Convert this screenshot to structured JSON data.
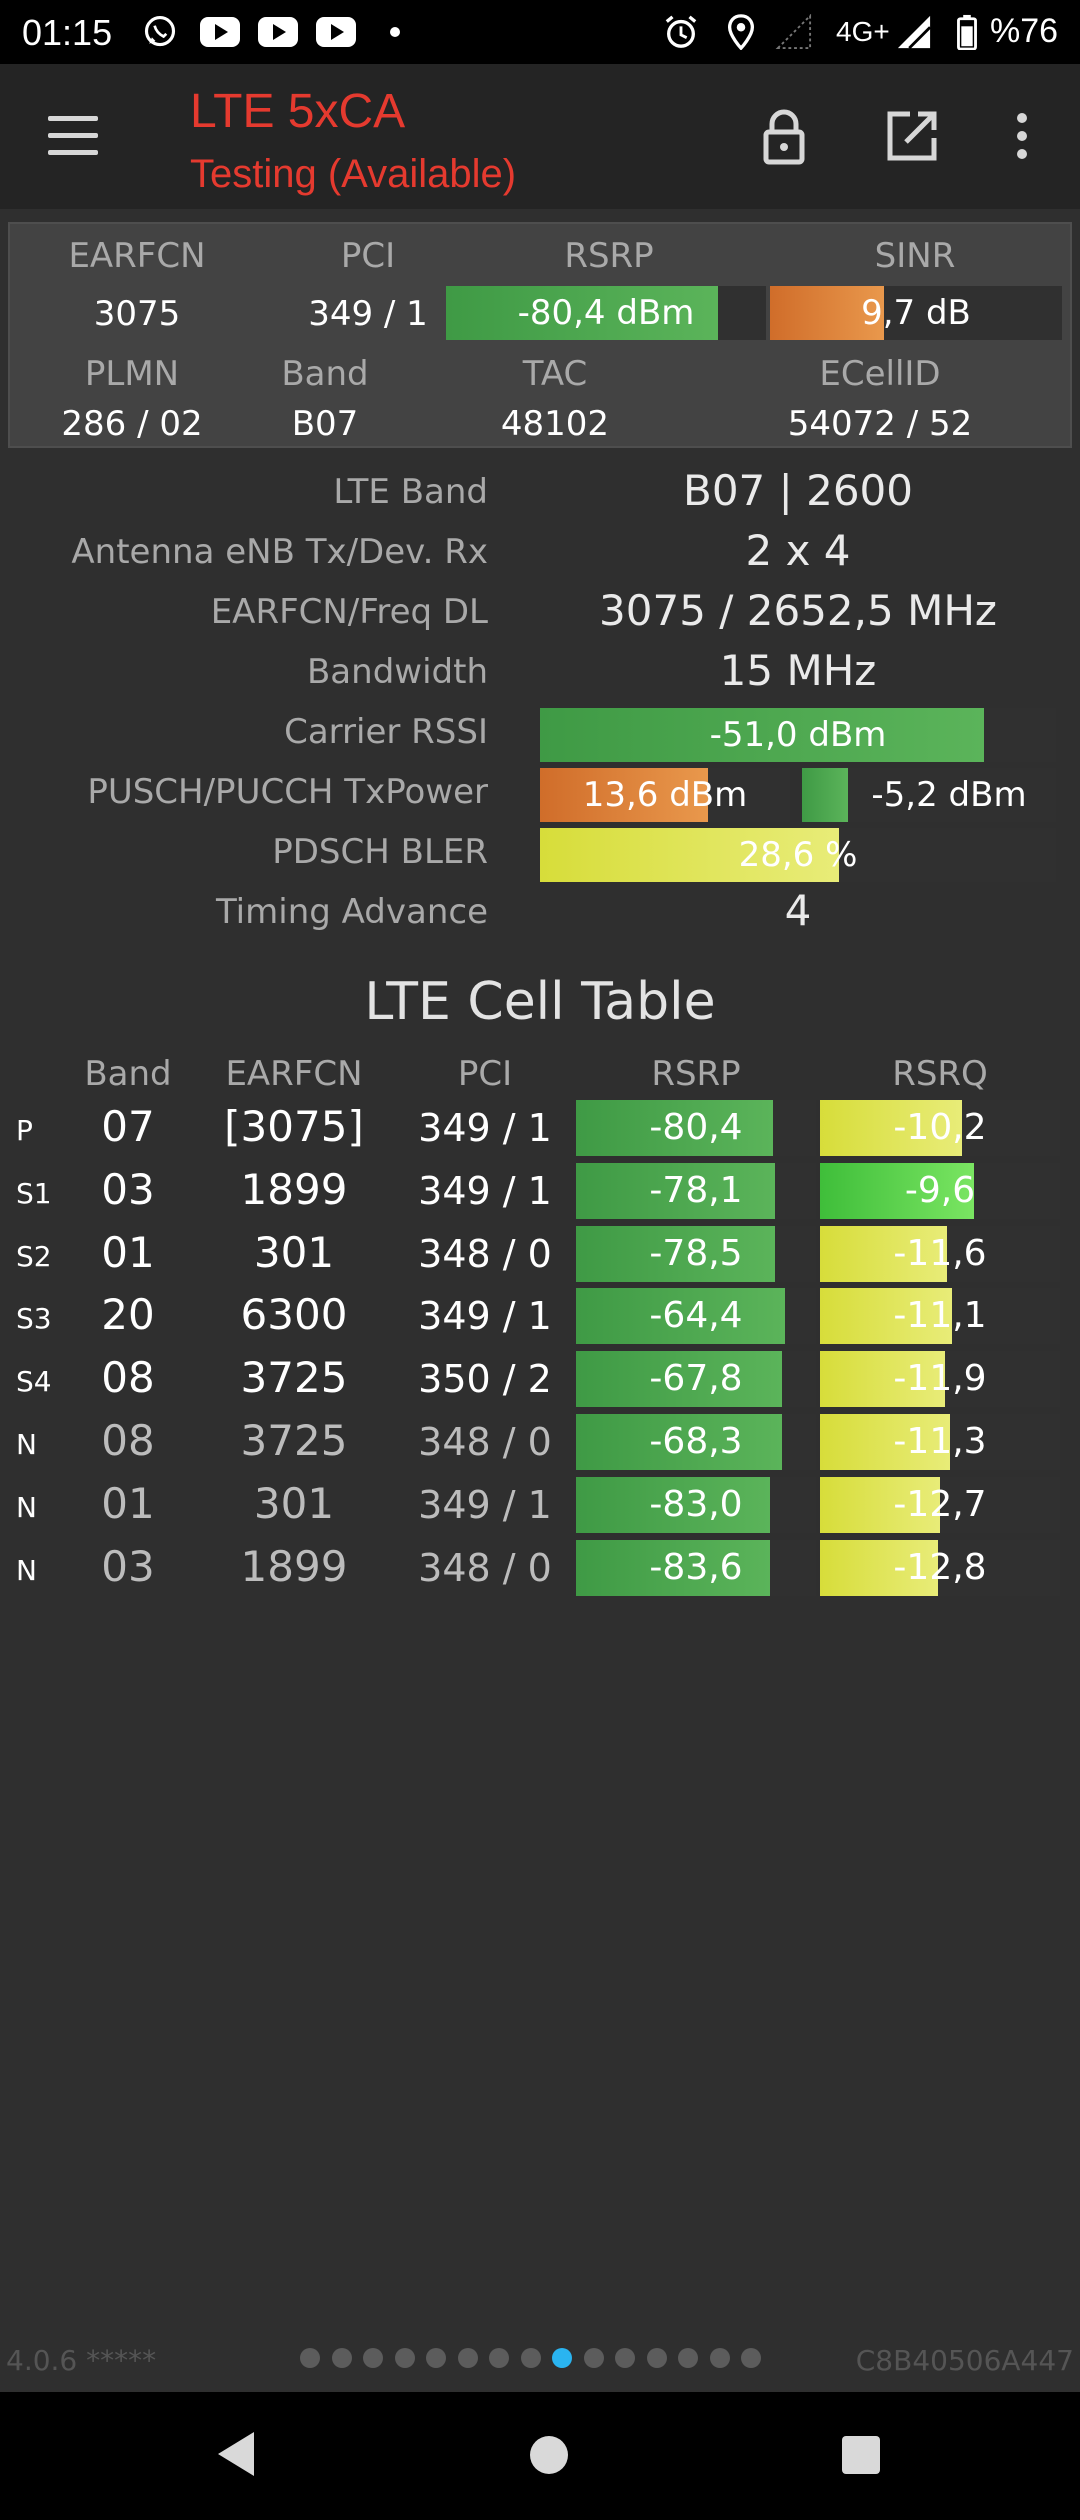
{
  "status_bar": {
    "time": "01:15",
    "network": "4G+",
    "battery": "%76"
  },
  "app": {
    "title": "LTE 5xCA",
    "subtitle": "Testing (Available)"
  },
  "summary": {
    "headers": {
      "earfcn": "EARFCN",
      "pci": "PCI",
      "rsrp": "RSRP",
      "sinr": "SINR",
      "plmn": "PLMN",
      "band": "Band",
      "tac": "TAC",
      "ecellid": "ECellID"
    },
    "earfcn": "3075",
    "pci": "349 / 1",
    "rsrp": {
      "label": "-80,4 dBm",
      "level": 0.85
    },
    "sinr": {
      "label": "9,7 dB",
      "level": 0.39
    },
    "plmn": "286 / 02",
    "band": "B07",
    "tac": "48102",
    "ecellid": "54072 / 52"
  },
  "details": {
    "lte_band": {
      "label": "LTE Band",
      "value": "B07 | 2600"
    },
    "antenna": {
      "label": "Antenna eNB Tx/Dev. Rx",
      "value": "2 x 4"
    },
    "freq": {
      "label": "EARFCN/Freq DL",
      "value": "3075 / 2652,5 MHz"
    },
    "bandwidth": {
      "label": "Bandwidth",
      "value": "15 MHz"
    },
    "rssi": {
      "label": "Carrier RSSI",
      "value": "-51,0 dBm",
      "level": 0.86
    },
    "txpower": {
      "label": "PUSCH/PUCCH TxPower",
      "pusch": "13,6 dBm",
      "pusch_level": 0.67,
      "pucch": "-5,2 dBm",
      "pucch_level": 0.18
    },
    "bler": {
      "label": "PDSCH BLER",
      "value": "28,6 %",
      "level": 0.58
    },
    "timing_advance": {
      "label": "Timing Advance",
      "value": "4"
    }
  },
  "cell_table": {
    "title": "LTE Cell Table",
    "headers": {
      "band": "Band",
      "earfcn": "EARFCN",
      "pci": "PCI",
      "rsrp": "RSRP",
      "rsrq": "RSRQ"
    },
    "rows": [
      {
        "type": "P",
        "band": "07",
        "earfcn": "[3075]",
        "pci": "349 / 1",
        "rsrp": "-80,4",
        "rsrp_level": 0.82,
        "rsrq": "-10,2",
        "rsrq_level": 0.59,
        "rsrq_color": "yellow"
      },
      {
        "type": "S1",
        "band": "03",
        "earfcn": "1899",
        "pci": "349 / 1",
        "rsrp": "-78,1",
        "rsrp_level": 0.83,
        "rsrq": "-9,6",
        "rsrq_level": 0.64,
        "rsrq_color": "brightgreen"
      },
      {
        "type": "S2",
        "band": "01",
        "earfcn": "301",
        "pci": "348 / 0",
        "rsrp": "-78,5",
        "rsrp_level": 0.83,
        "rsrq": "-11,6",
        "rsrq_level": 0.53,
        "rsrq_color": "yellow"
      },
      {
        "type": "S3",
        "band": "20",
        "earfcn": "6300",
        "pci": "349 / 1",
        "rsrp": "-64,4",
        "rsrp_level": 0.87,
        "rsrq": "-11,1",
        "rsrq_level": 0.55,
        "rsrq_color": "yellow"
      },
      {
        "type": "S4",
        "band": "08",
        "earfcn": "3725",
        "pci": "350 / 2",
        "rsrp": "-67,8",
        "rsrp_level": 0.86,
        "rsrq": "-11,9",
        "rsrq_level": 0.52,
        "rsrq_color": "yellow"
      },
      {
        "type": "N",
        "band": "08",
        "earfcn": "3725",
        "pci": "348 / 0",
        "rsrp": "-68,3",
        "rsrp_level": 0.86,
        "rsrq": "-11,3",
        "rsrq_level": 0.54,
        "rsrq_color": "yellow"
      },
      {
        "type": "N",
        "band": "01",
        "earfcn": "301",
        "pci": "349 / 1",
        "rsrp": "-83,0",
        "rsrp_level": 0.81,
        "rsrq": "-12,7",
        "rsrq_level": 0.5,
        "rsrq_color": "yellow"
      },
      {
        "type": "N",
        "band": "03",
        "earfcn": "1899",
        "pci": "348 / 0",
        "rsrp": "-83,6",
        "rsrp_level": 0.81,
        "rsrq": "-12,8",
        "rsrq_level": 0.49,
        "rsrq_color": "yellow"
      }
    ]
  },
  "footer": {
    "version": "4.0.6 *****",
    "device_id": "C8B40506A447",
    "page_count": 15,
    "active_page": 8
  },
  "colors": {
    "title": "#e53a2f",
    "page_active": "#2ab4f0"
  }
}
